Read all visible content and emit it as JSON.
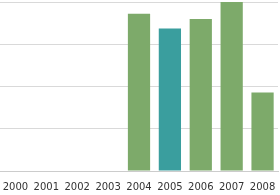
{
  "chart_data": {
    "type": "bar",
    "categories": [
      "2000",
      "2001",
      "2002",
      "2003",
      "2004",
      "2005",
      "2006",
      "2007",
      "2008"
    ],
    "values": [
      null,
      null,
      null,
      null,
      3.72,
      3.37,
      3.6,
      4.0,
      1.86
    ],
    "colors": [
      "#7daa6a",
      "#7daa6a",
      "#7daa6a",
      "#7daa6a",
      "#7daa6a",
      "#3a9e9e",
      "#7daa6a",
      "#7daa6a",
      "#7daa6a"
    ],
    "ylim": [
      0,
      4
    ],
    "yticks": [
      0,
      1,
      2,
      3,
      4
    ],
    "grid": true,
    "tick_labels": "x"
  }
}
